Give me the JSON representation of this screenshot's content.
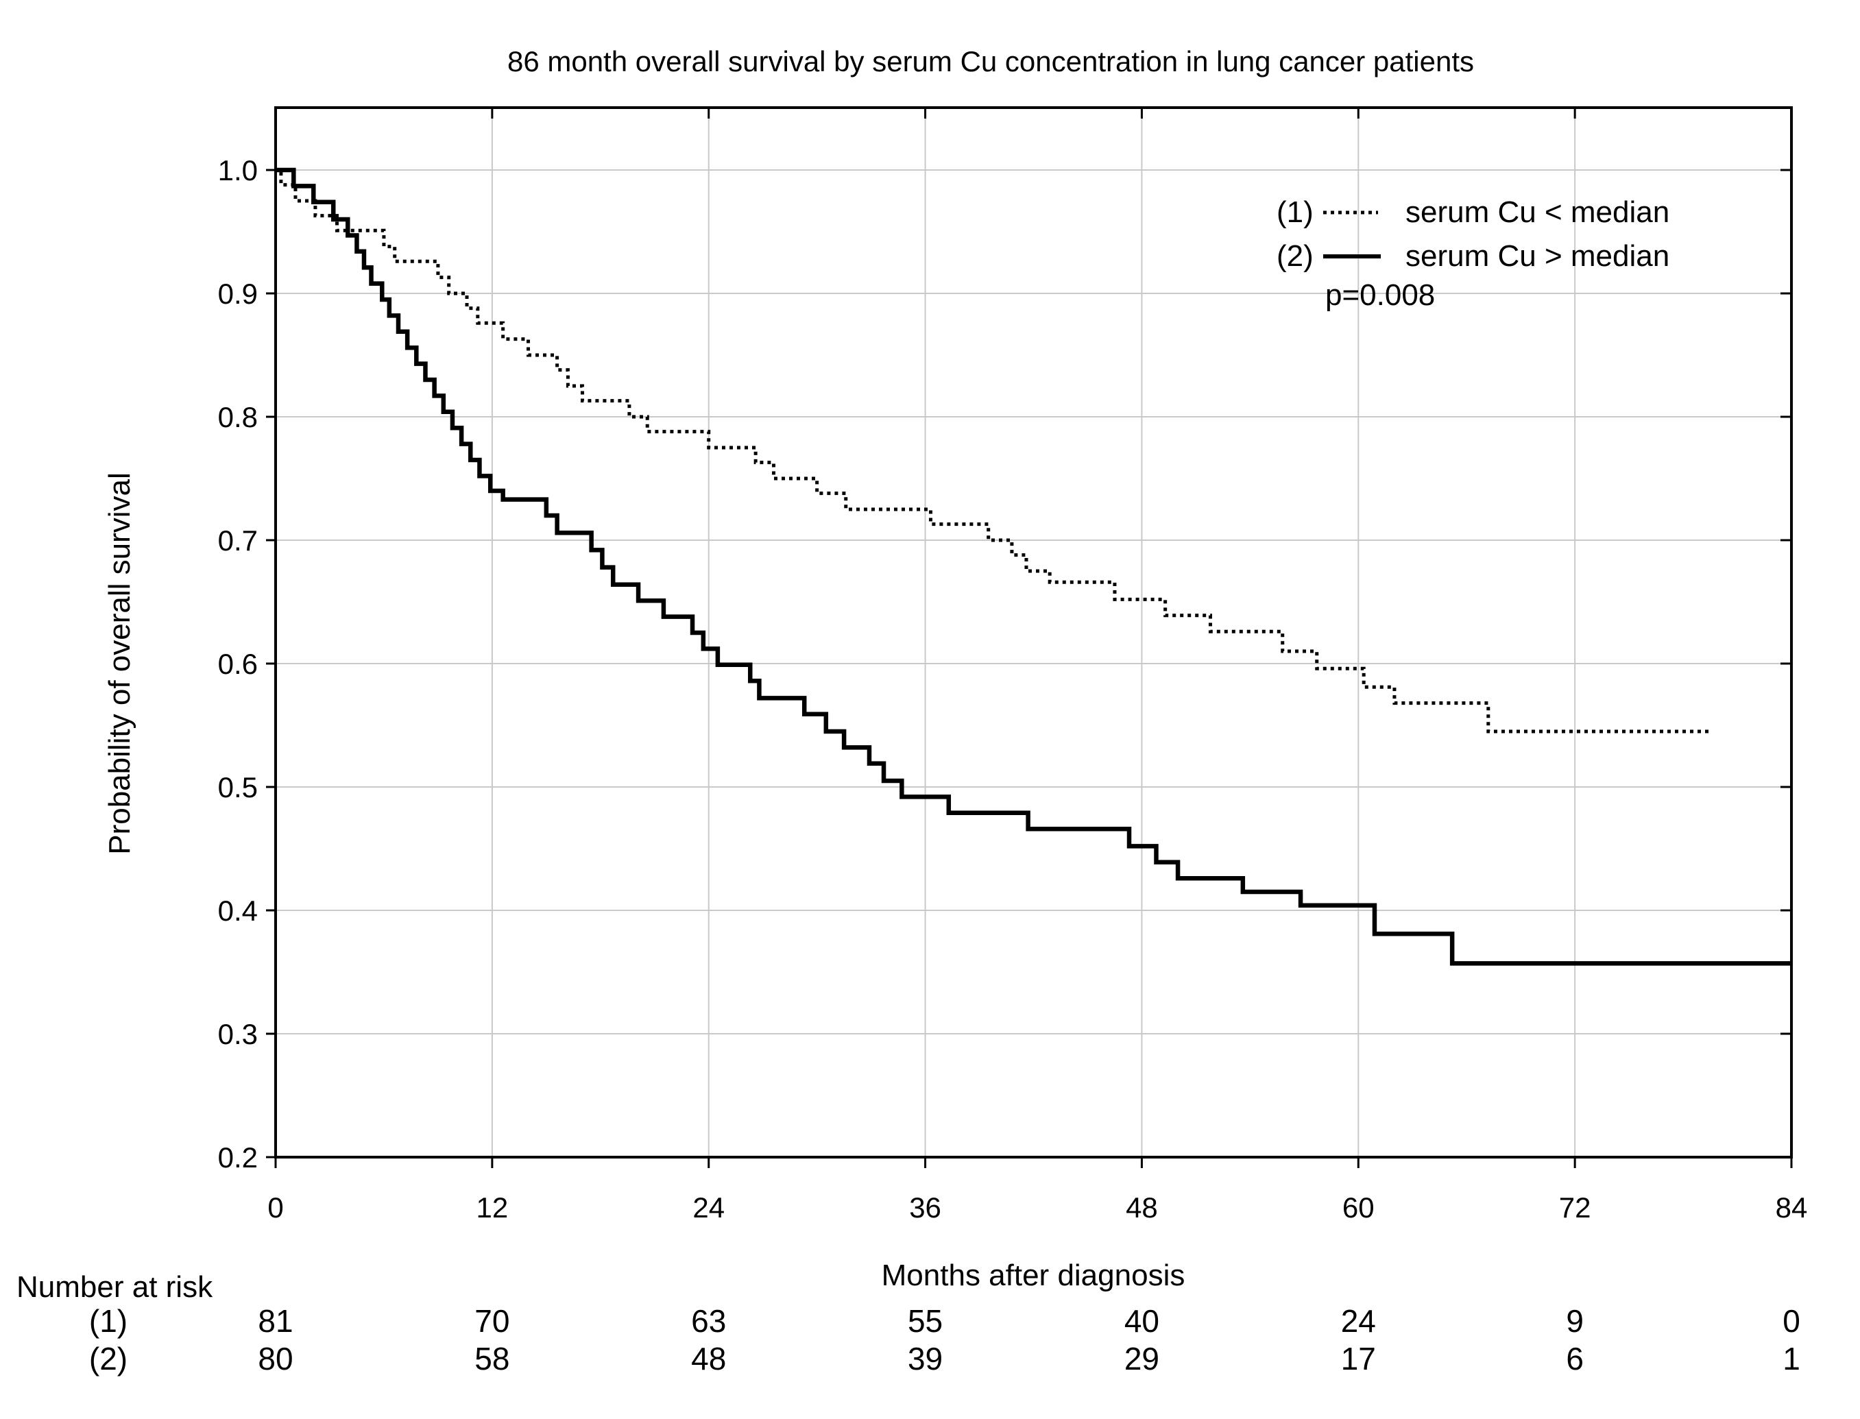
{
  "chart_data": {
    "type": "line",
    "subtype": "kaplan-meier-step-curves",
    "title": "86 month overall survival by serum Cu concentration in lung cancer patients",
    "xlabel": "Months after diagnosis",
    "ylabel": "Probability of overall survival",
    "xlim": [
      0,
      84
    ],
    "ylim": [
      0.2,
      1.0
    ],
    "x_ticks": [
      0,
      12,
      24,
      36,
      48,
      60,
      72,
      84
    ],
    "y_ticks": [
      0.2,
      0.3,
      0.4,
      0.5,
      0.6,
      0.7,
      0.8,
      0.9,
      1.0
    ],
    "grid": true,
    "legend_position": "inside top-right",
    "p_value": "p=0.008",
    "colors": {
      "curves": "#000000",
      "grid": "#c9c9c9",
      "frame": "#000000",
      "text": "#000000",
      "background": "#ffffff"
    },
    "series": [
      {
        "id": "(1)",
        "name": "serum Cu < median",
        "style": "dotted",
        "steps": [
          [
            0,
            1.0
          ],
          [
            0.3,
            0.988
          ],
          [
            1.1,
            0.975
          ],
          [
            2.2,
            0.963
          ],
          [
            3.4,
            0.951
          ],
          [
            6.0,
            0.938
          ],
          [
            6.6,
            0.926
          ],
          [
            9.0,
            0.913
          ],
          [
            9.6,
            0.9
          ],
          [
            10.6,
            0.888
          ],
          [
            11.2,
            0.876
          ],
          [
            12.6,
            0.863
          ],
          [
            14.0,
            0.85
          ],
          [
            15.6,
            0.838
          ],
          [
            16.2,
            0.825
          ],
          [
            17.0,
            0.813
          ],
          [
            19.6,
            0.8
          ],
          [
            20.6,
            0.788
          ],
          [
            24.0,
            0.775
          ],
          [
            26.6,
            0.763
          ],
          [
            27.6,
            0.75
          ],
          [
            30.0,
            0.738
          ],
          [
            31.6,
            0.725
          ],
          [
            36.3,
            0.713
          ],
          [
            39.5,
            0.7
          ],
          [
            40.8,
            0.688
          ],
          [
            41.6,
            0.675
          ],
          [
            42.9,
            0.666
          ],
          [
            46.5,
            0.652
          ],
          [
            49.3,
            0.639
          ],
          [
            51.8,
            0.626
          ],
          [
            55.8,
            0.61
          ],
          [
            57.7,
            0.596
          ],
          [
            60.3,
            0.581
          ],
          [
            62.0,
            0.568
          ],
          [
            67.2,
            0.545
          ],
          [
            79.5,
            0.545
          ]
        ]
      },
      {
        "id": "(2)",
        "name": "serum Cu > median",
        "style": "solid",
        "steps": [
          [
            0,
            1.0
          ],
          [
            1.0,
            0.987
          ],
          [
            2.1,
            0.974
          ],
          [
            3.2,
            0.96
          ],
          [
            4.0,
            0.947
          ],
          [
            4.5,
            0.934
          ],
          [
            4.9,
            0.921
          ],
          [
            5.3,
            0.908
          ],
          [
            5.9,
            0.895
          ],
          [
            6.3,
            0.882
          ],
          [
            6.8,
            0.869
          ],
          [
            7.3,
            0.856
          ],
          [
            7.8,
            0.843
          ],
          [
            8.3,
            0.83
          ],
          [
            8.8,
            0.817
          ],
          [
            9.3,
            0.804
          ],
          [
            9.8,
            0.791
          ],
          [
            10.3,
            0.778
          ],
          [
            10.8,
            0.765
          ],
          [
            11.3,
            0.752
          ],
          [
            11.9,
            0.74
          ],
          [
            12.6,
            0.733
          ],
          [
            15.0,
            0.72
          ],
          [
            15.6,
            0.706
          ],
          [
            17.5,
            0.692
          ],
          [
            18.1,
            0.678
          ],
          [
            18.7,
            0.664
          ],
          [
            20.1,
            0.651
          ],
          [
            21.5,
            0.638
          ],
          [
            23.1,
            0.625
          ],
          [
            23.7,
            0.612
          ],
          [
            24.5,
            0.599
          ],
          [
            26.3,
            0.586
          ],
          [
            26.8,
            0.572
          ],
          [
            29.3,
            0.559
          ],
          [
            30.5,
            0.545
          ],
          [
            31.5,
            0.532
          ],
          [
            32.9,
            0.519
          ],
          [
            33.7,
            0.505
          ],
          [
            34.7,
            0.492
          ],
          [
            37.3,
            0.479
          ],
          [
            41.7,
            0.466
          ],
          [
            47.3,
            0.452
          ],
          [
            48.8,
            0.439
          ],
          [
            50.0,
            0.426
          ],
          [
            53.6,
            0.415
          ],
          [
            56.8,
            0.404
          ],
          [
            60.9,
            0.381
          ],
          [
            65.2,
            0.357
          ],
          [
            84,
            0.357
          ]
        ]
      }
    ],
    "number_at_risk": {
      "label": "Number at risk",
      "times": [
        0,
        12,
        24,
        36,
        48,
        60,
        72,
        84
      ],
      "rows": [
        {
          "label": "(1)",
          "values": [
            81,
            70,
            63,
            55,
            40,
            24,
            9,
            0
          ]
        },
        {
          "label": "(2)",
          "values": [
            80,
            58,
            48,
            39,
            29,
            17,
            6,
            1
          ]
        }
      ]
    }
  }
}
